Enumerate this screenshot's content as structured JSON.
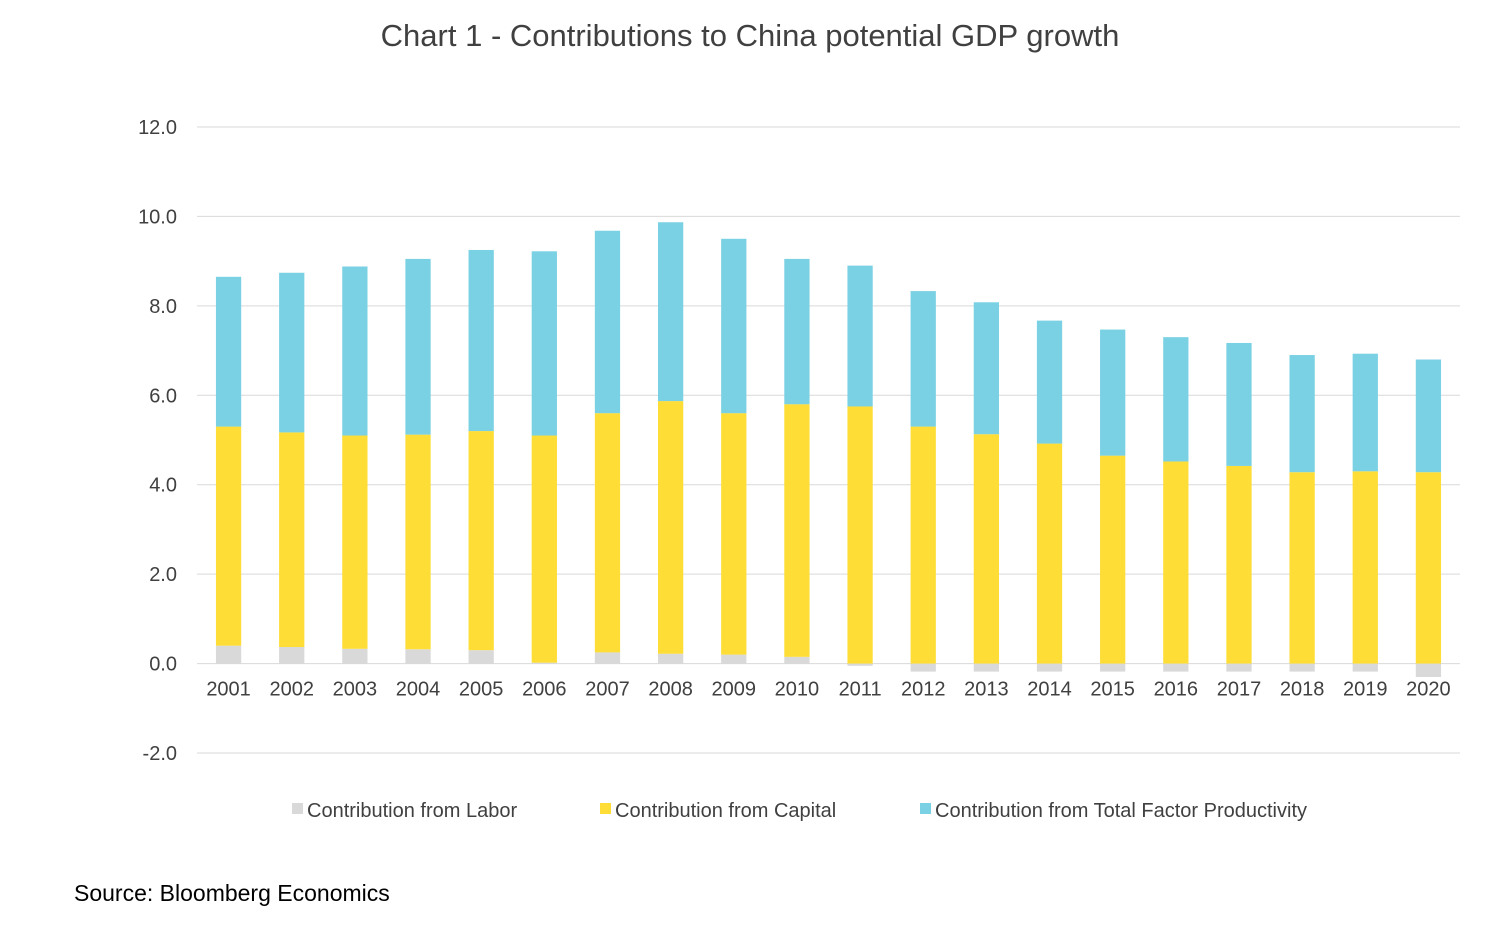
{
  "chart_data": {
    "type": "bar",
    "stacked": true,
    "title": "Chart 1 - Contributions to China potential GDP growth",
    "source": "Source: Bloomberg Economics",
    "categories": [
      "2001",
      "2002",
      "2003",
      "2004",
      "2005",
      "2006",
      "2007",
      "2008",
      "2009",
      "2010",
      "2011",
      "2012",
      "2013",
      "2014",
      "2015",
      "2016",
      "2017",
      "2018",
      "2019",
      "2020"
    ],
    "series": [
      {
        "name": "Contribution from Labor",
        "color": "#d9d9d9",
        "values": [
          0.4,
          0.37,
          0.33,
          0.32,
          0.3,
          0.02,
          0.25,
          0.22,
          0.2,
          0.15,
          -0.05,
          -0.18,
          -0.18,
          -0.18,
          -0.18,
          -0.18,
          -0.18,
          -0.18,
          -0.18,
          -0.3
        ]
      },
      {
        "name": "Contribution from Capital",
        "color": "#fddd36",
        "values": [
          4.9,
          4.8,
          4.77,
          4.8,
          4.9,
          5.08,
          5.35,
          5.65,
          5.4,
          5.65,
          5.75,
          5.3,
          5.13,
          4.92,
          4.65,
          4.52,
          4.42,
          4.28,
          4.3,
          4.28
        ]
      },
      {
        "name": "Contribution from Total Factor Productivity",
        "color": "#7ad1e3",
        "values": [
          3.35,
          3.57,
          3.78,
          3.93,
          4.05,
          4.12,
          4.08,
          4.0,
          3.9,
          3.25,
          3.15,
          3.03,
          2.95,
          2.75,
          2.82,
          2.78,
          2.75,
          2.62,
          2.63,
          2.52
        ]
      }
    ],
    "ylim": [
      -2.0,
      12.0
    ],
    "yticks": [
      "-2.0",
      "0.0",
      "2.0",
      "4.0",
      "6.0",
      "8.0",
      "10.0",
      "12.0"
    ],
    "grid": true,
    "legend_position": "bottom"
  }
}
